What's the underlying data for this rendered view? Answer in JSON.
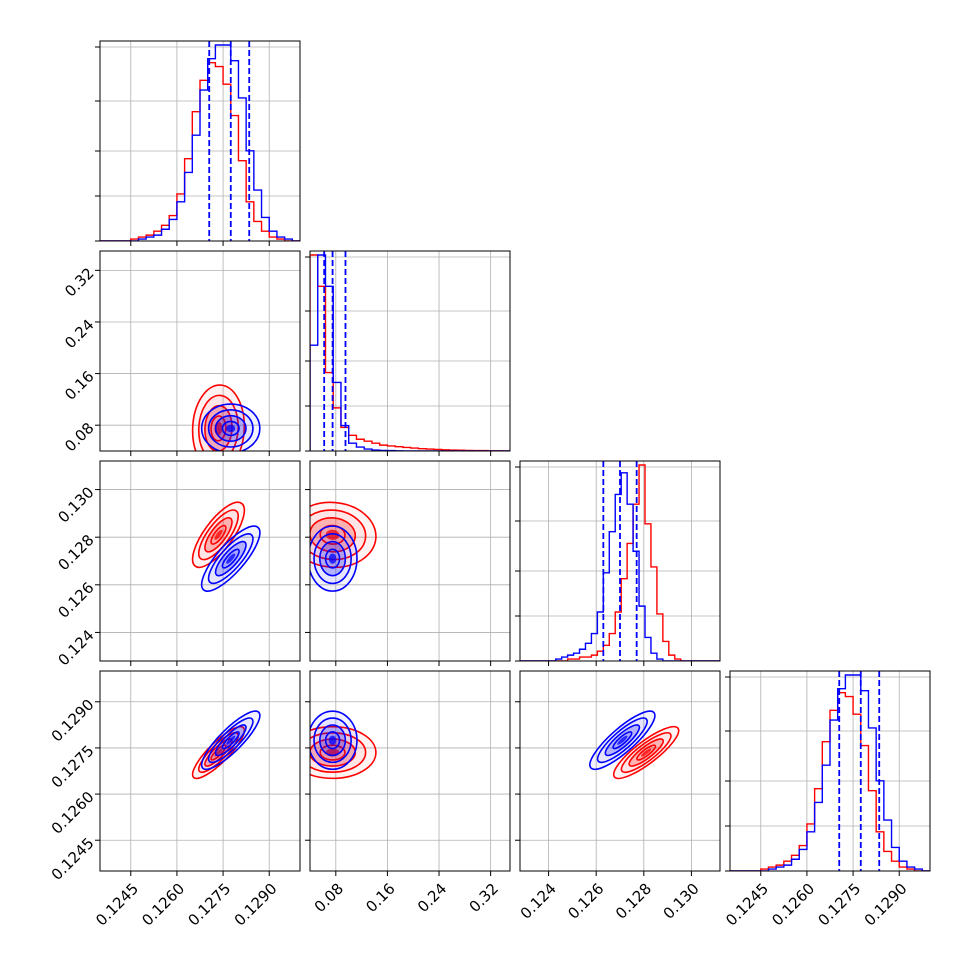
{
  "chart_data": {
    "type": "corner",
    "title": "",
    "grid": true,
    "legend": "none",
    "series": [
      {
        "color": "#0000ff"
      },
      {
        "color": "#ff0000"
      }
    ],
    "params": [
      {
        "range": [
          0.1235,
          0.13
        ],
        "ticks": [
          0.1245,
          0.126,
          0.1275,
          0.129
        ],
        "tick_labels": [
          "0.1245",
          "0.1260",
          "0.1275",
          "0.1290"
        ],
        "quantiles": [
          0.12705,
          0.12775,
          0.12835
        ]
      },
      {
        "range": [
          0.04,
          0.35
        ],
        "ticks": [
          0.08,
          0.16,
          0.24,
          0.32
        ],
        "tick_labels": [
          "0.08",
          "0.16",
          "0.24",
          "0.32"
        ],
        "quantiles": [
          0.062,
          0.075,
          0.095
        ]
      },
      {
        "range": [
          0.1228,
          0.1312
        ],
        "ticks": [
          0.124,
          0.126,
          0.128,
          0.13
        ],
        "tick_labels": [
          "0.124",
          "0.126",
          "0.128",
          "0.130"
        ],
        "quantiles": [
          0.1263,
          0.127,
          0.1277
        ]
      },
      {
        "range": [
          0.1235,
          0.13
        ],
        "ticks": [
          0.1245,
          0.126,
          0.1275,
          0.129
        ],
        "tick_labels": [
          "0.1245",
          "0.1260",
          "0.1275",
          "0.1290"
        ],
        "quantiles": [
          0.12705,
          0.12775,
          0.12835
        ]
      }
    ],
    "histograms": [
      {
        "bins": [
          0.1235,
          0.12375,
          0.124,
          0.12425,
          0.1245,
          0.12475,
          0.125,
          0.12525,
          0.1255,
          0.12575,
          0.126,
          0.12625,
          0.1265,
          0.12675,
          0.127,
          0.12725,
          0.1275,
          0.12775,
          0.128,
          0.12825,
          0.1285,
          0.12875,
          0.129,
          0.12925,
          0.1295,
          0.12975,
          0.13
        ],
        "blue": [
          0,
          0,
          0,
          0,
          0,
          1,
          2,
          3,
          6,
          11,
          20,
          35,
          54,
          77,
          93,
          100,
          100,
          92,
          73,
          46,
          26,
          12,
          5,
          2,
          1,
          0
        ],
        "red": [
          0,
          0,
          0,
          0,
          1,
          2,
          3,
          5,
          8,
          13,
          24,
          42,
          66,
          82,
          91,
          89,
          80,
          64,
          41,
          20,
          10,
          5,
          2,
          1,
          0,
          0
        ]
      },
      {
        "bins": [
          0.04,
          0.052,
          0.064,
          0.076,
          0.088,
          0.1,
          0.112,
          0.124,
          0.136,
          0.148,
          0.16,
          0.172,
          0.184,
          0.196,
          0.208,
          0.22,
          0.232,
          0.244,
          0.256,
          0.268,
          0.28,
          0.292,
          0.304,
          0.316,
          0.328,
          0.34,
          0.352
        ],
        "blue": [
          54,
          100,
          84,
          35,
          13,
          4,
          2,
          1,
          0.5,
          0.3,
          0.2,
          0.1,
          0,
          0,
          0,
          0,
          0,
          0,
          0,
          0,
          0,
          0,
          0,
          0,
          0,
          0
        ],
        "red": [
          100,
          84,
          40,
          22,
          12,
          8,
          6,
          5,
          4,
          3,
          2.6,
          2.2,
          1.8,
          1.5,
          1.2,
          1,
          0.8,
          0.6,
          0.5,
          0.4,
          0.3,
          0.2,
          0.2,
          0.1,
          0.1,
          0
        ]
      },
      {
        "bins": [
          0.1228,
          0.12305,
          0.1233,
          0.12355,
          0.1238,
          0.12405,
          0.1243,
          0.12455,
          0.1248,
          0.12505,
          0.1253,
          0.12555,
          0.1258,
          0.12605,
          0.1263,
          0.12655,
          0.1268,
          0.12705,
          0.1273,
          0.12755,
          0.1278,
          0.12805,
          0.1283,
          0.12855,
          0.1288,
          0.12905,
          0.1293,
          0.12955,
          0.1298,
          0.13005,
          0.1303,
          0.13055,
          0.1308,
          0.13105,
          0.1313
        ],
        "blue": [
          0,
          0,
          0,
          0,
          0,
          0,
          1,
          2,
          3,
          4,
          6,
          9,
          14,
          25,
          45,
          66,
          85,
          96,
          80,
          56,
          28,
          12,
          4,
          1,
          0,
          0,
          0,
          0,
          0,
          0,
          0,
          0,
          0,
          0
        ],
        "red": [
          0,
          0,
          0,
          0,
          0,
          0,
          0,
          0,
          1,
          1,
          2,
          2,
          3,
          5,
          8,
          14,
          25,
          42,
          60,
          80,
          100,
          70,
          48,
          24,
          10,
          3,
          1,
          0,
          0,
          0,
          0,
          0,
          0,
          0
        ]
      },
      {
        "bins": [
          0.1235,
          0.12375,
          0.124,
          0.12425,
          0.1245,
          0.12475,
          0.125,
          0.12525,
          0.1255,
          0.12575,
          0.126,
          0.12625,
          0.1265,
          0.12675,
          0.127,
          0.12725,
          0.1275,
          0.12775,
          0.128,
          0.12825,
          0.1285,
          0.12875,
          0.129,
          0.12925,
          0.1295,
          0.12975,
          0.13
        ],
        "blue": [
          0,
          0,
          0,
          0,
          0,
          1,
          2,
          3,
          6,
          11,
          20,
          35,
          54,
          77,
          93,
          100,
          100,
          92,
          73,
          46,
          26,
          12,
          5,
          2,
          1,
          0
        ],
        "red": [
          0,
          0,
          0,
          0,
          1,
          2,
          3,
          5,
          8,
          13,
          24,
          42,
          66,
          82,
          91,
          89,
          80,
          64,
          41,
          20,
          10,
          5,
          2,
          1,
          0,
          0
        ]
      }
    ],
    "pairs": [
      {
        "row": 1,
        "col": 0,
        "blue": {
          "mean": [
            0.12775,
            0.075
          ],
          "sd": [
            0.00045,
            0.018
          ],
          "rho": 0.0
        },
        "red": {
          "mean": [
            0.12735,
            0.075
          ],
          "sd": [
            0.0004,
            0.032
          ],
          "rho": 0.05,
          "skew": 0.06
        }
      },
      {
        "row": 2,
        "col": 0,
        "blue": {
          "mean": [
            0.12775,
            0.1271
          ],
          "sd": [
            0.00045,
            0.00065
          ],
          "rho": 0.8
        },
        "red": {
          "mean": [
            0.12735,
            0.1281
          ],
          "sd": [
            0.0004,
            0.00065
          ],
          "rho": 0.75
        }
      },
      {
        "row": 3,
        "col": 0,
        "blue": {
          "mean": [
            0.12775,
            0.12775
          ],
          "sd": [
            0.00045,
            0.00045
          ],
          "rho": 0.85
        },
        "red": {
          "mean": [
            0.12735,
            0.12735
          ],
          "sd": [
            0.0004,
            0.0004
          ],
          "rho": 0.85
        }
      },
      {
        "row": 2,
        "col": 1,
        "blue": {
          "mean": [
            0.075,
            0.1271
          ],
          "sd": [
            0.018,
            0.00065
          ],
          "rho": 0.0
        },
        "red": {
          "mean": [
            0.075,
            0.1281
          ],
          "sd": [
            0.032,
            0.00065
          ],
          "rho": -0.05,
          "skew": 0.06
        }
      },
      {
        "row": 3,
        "col": 1,
        "blue": {
          "mean": [
            0.075,
            0.12775
          ],
          "sd": [
            0.018,
            0.00045
          ],
          "rho": 0.0
        },
        "red": {
          "mean": [
            0.075,
            0.12735
          ],
          "sd": [
            0.032,
            0.0004
          ],
          "rho": 0.0,
          "skew": 0.06
        }
      },
      {
        "row": 3,
        "col": 2,
        "blue": {
          "mean": [
            0.1271,
            0.12775
          ],
          "sd": [
            0.00065,
            0.00045
          ],
          "rho": 0.85
        },
        "red": {
          "mean": [
            0.1281,
            0.12735
          ],
          "sd": [
            0.00065,
            0.0004
          ],
          "rho": 0.85
        }
      }
    ]
  }
}
